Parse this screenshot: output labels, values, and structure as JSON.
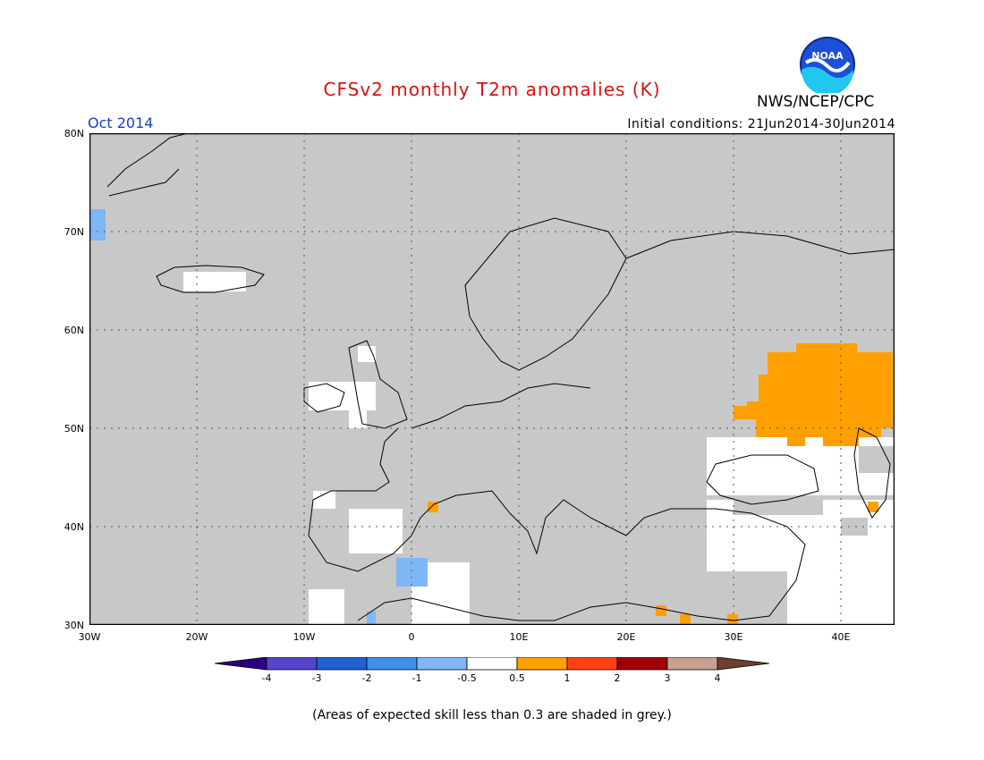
{
  "header": {
    "title": "CFSv2 monthly T2m anomalies (K)",
    "month": "Oct 2014",
    "initial_conditions": "Initial conditions: 21Jun2014-30Jun2014",
    "agency": "NWS/NCEP/CPC",
    "logo_text": "NOAA"
  },
  "map": {
    "lat_range": [
      30,
      80
    ],
    "lon_range": [
      -30,
      45
    ],
    "lat_labels": [
      "80N",
      "70N",
      "60N",
      "50N",
      "40N",
      "30N"
    ],
    "lon_labels": [
      "30W",
      "20W",
      "10W",
      "0",
      "10E",
      "20E",
      "30E",
      "40E"
    ],
    "gridlines": "dotted",
    "background_fill": "grey (skill < 0.3)",
    "colors": {
      "grey": "#c8c8c8",
      "white": "#ffffff",
      "light_blue": "#7fb6f5",
      "orange": "#ffa000",
      "coast": "#000000"
    }
  },
  "colorbar": {
    "ticks": [
      "-4",
      "-3",
      "-2",
      "-1",
      "-0.5",
      "0.5",
      "1",
      "2",
      "3",
      "4"
    ],
    "colors": [
      "#2a0080",
      "#5544cc",
      "#2060d0",
      "#4090e8",
      "#7fb6f5",
      "#ffffff",
      "#ffa000",
      "#ff4010",
      "#a00000",
      "#c8a090",
      "#6b4030"
    ]
  },
  "footnote": "(Areas of expected skill less than 0.3 are shaded in grey.)"
}
